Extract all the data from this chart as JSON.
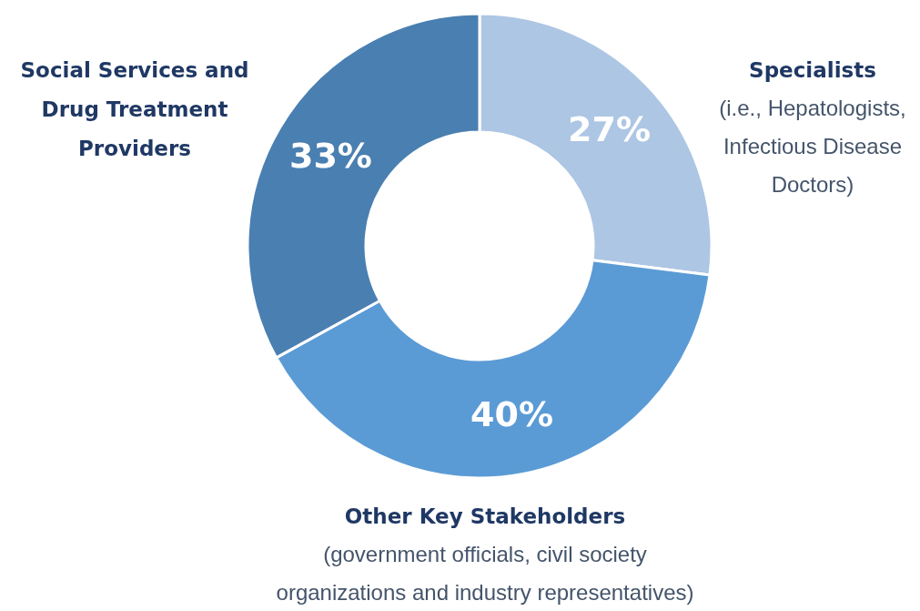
{
  "chart_data": {
    "type": "donut",
    "categories": [
      "Specialists",
      "Other Key Stakeholders",
      "Social Services and Drug Treatment Providers"
    ],
    "values": [
      27,
      40,
      33
    ],
    "colors": [
      "#adc6e4",
      "#5b9bd5",
      "#4a7fb1"
    ],
    "value_labels": [
      "27%",
      "40%",
      "33%"
    ],
    "annotations": [
      "(i.e., Hepatologists, Infectious Disease Doctors)",
      "(government officials, civil society organizations and industry representatives)"
    ]
  }
}
